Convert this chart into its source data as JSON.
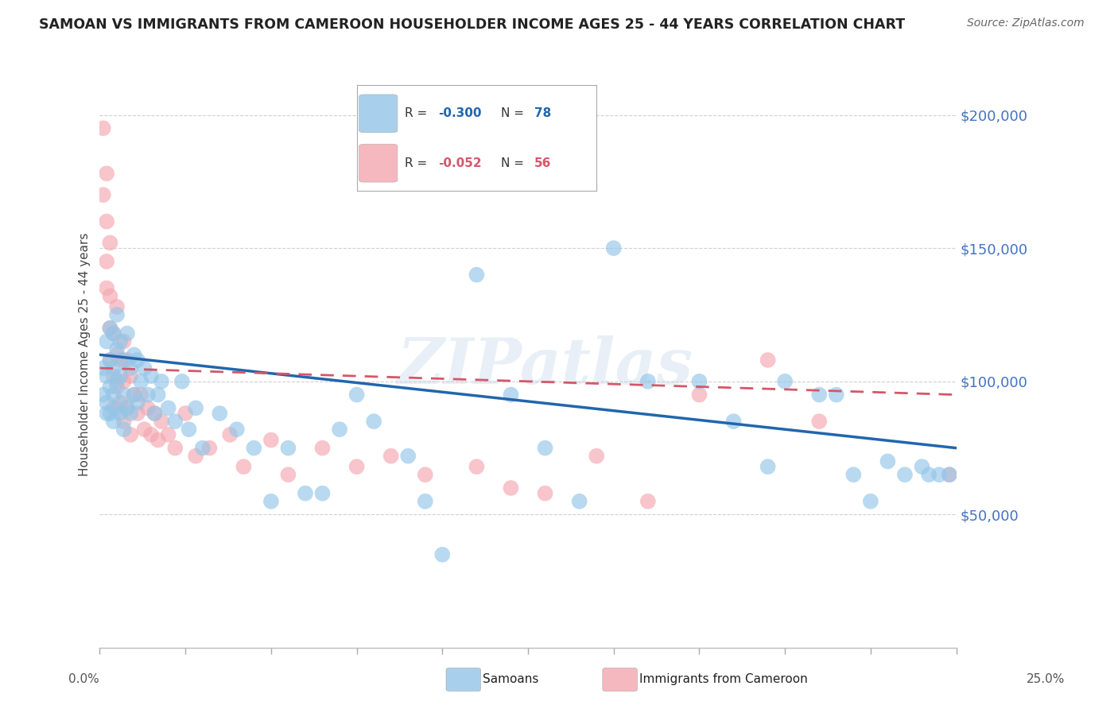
{
  "title": "SAMOAN VS IMMIGRANTS FROM CAMEROON HOUSEHOLDER INCOME AGES 25 - 44 YEARS CORRELATION CHART",
  "source": "Source: ZipAtlas.com",
  "ylabel": "Householder Income Ages 25 - 44 years",
  "xlim": [
    0.0,
    0.25
  ],
  "ylim": [
    0,
    220000
  ],
  "yticks": [
    50000,
    100000,
    150000,
    200000
  ],
  "ytick_labels": [
    "$50,000",
    "$100,000",
    "$150,000",
    "$200,000"
  ],
  "watermark": "ZIPatlas",
  "legend_blue_r_val": "-0.300",
  "legend_blue_n_val": "78",
  "legend_pink_r_val": "-0.052",
  "legend_pink_n_val": "56",
  "legend_label_blue": "Samoans",
  "legend_label_pink": "Immigrants from Cameroon",
  "blue_color": "#92c5e8",
  "pink_color": "#f4a7b0",
  "blue_line_color": "#2166ac",
  "pink_line_color": "#d6566a",
  "ytick_color": "#4472c4",
  "background_color": "#ffffff",
  "grid_color": "#cccccc",
  "samoans_x": [
    0.001,
    0.001,
    0.002,
    0.002,
    0.002,
    0.002,
    0.003,
    0.003,
    0.003,
    0.003,
    0.004,
    0.004,
    0.004,
    0.004,
    0.005,
    0.005,
    0.005,
    0.005,
    0.006,
    0.006,
    0.006,
    0.007,
    0.007,
    0.007,
    0.008,
    0.008,
    0.009,
    0.009,
    0.01,
    0.01,
    0.011,
    0.011,
    0.012,
    0.013,
    0.014,
    0.015,
    0.016,
    0.017,
    0.018,
    0.02,
    0.022,
    0.024,
    0.026,
    0.028,
    0.03,
    0.035,
    0.04,
    0.045,
    0.05,
    0.055,
    0.06,
    0.065,
    0.07,
    0.075,
    0.08,
    0.09,
    0.095,
    0.1,
    0.11,
    0.12,
    0.13,
    0.14,
    0.15,
    0.16,
    0.175,
    0.185,
    0.195,
    0.2,
    0.21,
    0.215,
    0.22,
    0.225,
    0.23,
    0.235,
    0.24,
    0.242,
    0.245,
    0.248
  ],
  "samoans_y": [
    105000,
    95000,
    115000,
    102000,
    92000,
    88000,
    120000,
    108000,
    98000,
    88000,
    118000,
    105000,
    95000,
    85000,
    125000,
    112000,
    100000,
    90000,
    115000,
    102000,
    88000,
    108000,
    95000,
    82000,
    118000,
    90000,
    105000,
    88000,
    110000,
    95000,
    108000,
    92000,
    100000,
    105000,
    95000,
    102000,
    88000,
    95000,
    100000,
    90000,
    85000,
    100000,
    82000,
    90000,
    75000,
    88000,
    82000,
    75000,
    55000,
    75000,
    58000,
    58000,
    82000,
    95000,
    85000,
    72000,
    55000,
    35000,
    140000,
    95000,
    75000,
    55000,
    150000,
    100000,
    100000,
    85000,
    68000,
    100000,
    95000,
    95000,
    65000,
    55000,
    70000,
    65000,
    68000,
    65000,
    65000,
    65000
  ],
  "cameroon_x": [
    0.001,
    0.001,
    0.002,
    0.002,
    0.002,
    0.002,
    0.003,
    0.003,
    0.003,
    0.003,
    0.004,
    0.004,
    0.004,
    0.005,
    0.005,
    0.005,
    0.006,
    0.006,
    0.007,
    0.007,
    0.007,
    0.008,
    0.008,
    0.009,
    0.009,
    0.01,
    0.011,
    0.012,
    0.013,
    0.014,
    0.015,
    0.016,
    0.017,
    0.018,
    0.02,
    0.022,
    0.025,
    0.028,
    0.032,
    0.038,
    0.042,
    0.05,
    0.055,
    0.065,
    0.075,
    0.085,
    0.095,
    0.11,
    0.12,
    0.13,
    0.145,
    0.16,
    0.175,
    0.195,
    0.21,
    0.248
  ],
  "cameroon_y": [
    195000,
    170000,
    178000,
    160000,
    145000,
    135000,
    152000,
    132000,
    120000,
    108000,
    118000,
    102000,
    90000,
    128000,
    110000,
    98000,
    108000,
    92000,
    115000,
    100000,
    85000,
    108000,
    90000,
    102000,
    80000,
    95000,
    88000,
    95000,
    82000,
    90000,
    80000,
    88000,
    78000,
    85000,
    80000,
    75000,
    88000,
    72000,
    75000,
    80000,
    68000,
    78000,
    65000,
    75000,
    68000,
    72000,
    65000,
    68000,
    60000,
    58000,
    72000,
    55000,
    95000,
    108000,
    85000,
    65000
  ]
}
